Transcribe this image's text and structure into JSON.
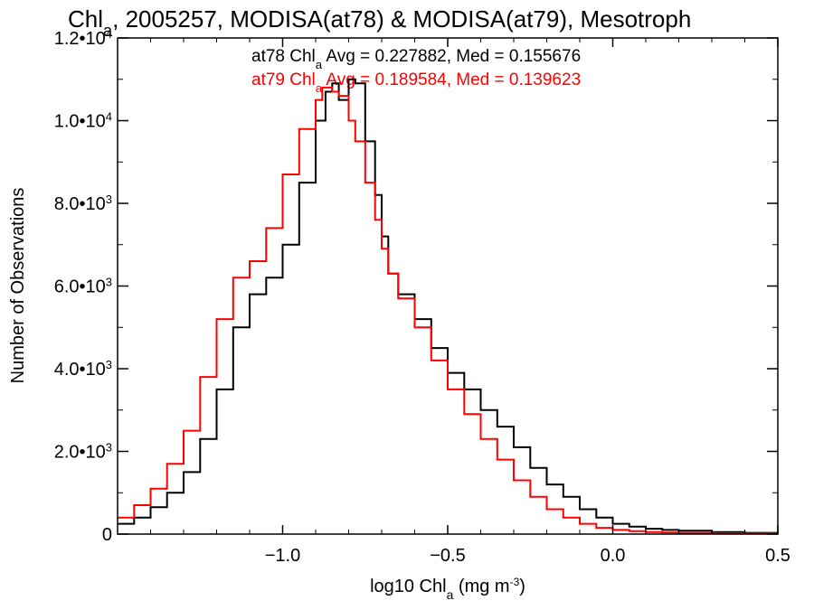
{
  "chart_data": {
    "type": "line",
    "title_parts": [
      "Chl",
      "a",
      ", 2005257, MODISA(at78) & MODISA(at79), Mesotroph"
    ],
    "xlabel_parts": [
      "log10 Chl",
      "a",
      " (mg m",
      "-3",
      ")"
    ],
    "ylabel": "Number of Observations",
    "xlim": [
      -1.5,
      0.5
    ],
    "ylim": [
      0,
      12000
    ],
    "x_ticks": [
      {
        "value": -1.0,
        "label": "−1.0"
      },
      {
        "value": -0.5,
        "label": "−0.5"
      },
      {
        "value": 0.0,
        "label": "0.0"
      },
      {
        "value": 0.5,
        "label": "0.5"
      }
    ],
    "y_ticks": [
      {
        "value": 0,
        "mant": "0",
        "exp": ""
      },
      {
        "value": 2000,
        "mant": "2.0•10",
        "exp": "3"
      },
      {
        "value": 4000,
        "mant": "4.0•10",
        "exp": "3"
      },
      {
        "value": 6000,
        "mant": "6.0•10",
        "exp": "3"
      },
      {
        "value": 8000,
        "mant": "8.0•10",
        "exp": "3"
      },
      {
        "value": 10000,
        "mant": "1.0•10",
        "exp": "4"
      },
      {
        "value": 12000,
        "mant": "1.2•10",
        "exp": "4"
      }
    ],
    "annotations": [
      {
        "parts": [
          "at78 Chl",
          "a",
          " Avg = 0.227882, Med = 0.155676"
        ],
        "color": "#000000"
      },
      {
        "parts": [
          "at79 Chl",
          "a",
          " Avg = 0.189584, Med = 0.139623"
        ],
        "color": "#ff0000"
      }
    ],
    "series": [
      {
        "color": "#000000",
        "x": [
          -1.5,
          -1.45,
          -1.4,
          -1.35,
          -1.3,
          -1.25,
          -1.2,
          -1.15,
          -1.1,
          -1.05,
          -1.0,
          -0.95,
          -0.9,
          -0.87,
          -0.85,
          -0.83,
          -0.8,
          -0.78,
          -0.75,
          -0.72,
          -0.7,
          -0.68,
          -0.65,
          -0.6,
          -0.55,
          -0.5,
          -0.45,
          -0.4,
          -0.35,
          -0.3,
          -0.25,
          -0.2,
          -0.15,
          -0.1,
          -0.05,
          0.0,
          0.05,
          0.1,
          0.15,
          0.2,
          0.3,
          0.4,
          0.5
        ],
        "y": [
          250,
          400,
          650,
          1000,
          1500,
          2300,
          3500,
          5000,
          5800,
          6200,
          7000,
          8500,
          10000,
          10700,
          10900,
          10500,
          11000,
          10900,
          9500,
          8200,
          7200,
          6300,
          5800,
          5200,
          4500,
          3900,
          3500,
          3000,
          2600,
          2100,
          1600,
          1200,
          900,
          600,
          400,
          250,
          180,
          130,
          100,
          80,
          50,
          30,
          20
        ]
      },
      {
        "color": "#ff0000",
        "x": [
          -1.5,
          -1.45,
          -1.4,
          -1.35,
          -1.3,
          -1.25,
          -1.2,
          -1.15,
          -1.1,
          -1.05,
          -1.0,
          -0.95,
          -0.9,
          -0.88,
          -0.85,
          -0.83,
          -0.8,
          -0.78,
          -0.75,
          -0.72,
          -0.7,
          -0.68,
          -0.65,
          -0.6,
          -0.55,
          -0.5,
          -0.45,
          -0.4,
          -0.35,
          -0.3,
          -0.25,
          -0.2,
          -0.15,
          -0.1,
          -0.05,
          0.0,
          0.05,
          0.1,
          0.15,
          0.2,
          0.3,
          0.4,
          0.5
        ],
        "y": [
          400,
          700,
          1100,
          1700,
          2500,
          3800,
          5200,
          6200,
          6600,
          7400,
          8700,
          9800,
          10500,
          10800,
          10700,
          10600,
          10000,
          9500,
          8500,
          7600,
          6900,
          6300,
          5700,
          5000,
          4200,
          3500,
          2900,
          2300,
          1800,
          1300,
          900,
          600,
          400,
          250,
          150,
          100,
          70,
          50,
          40,
          30,
          20,
          15,
          10
        ]
      }
    ]
  }
}
